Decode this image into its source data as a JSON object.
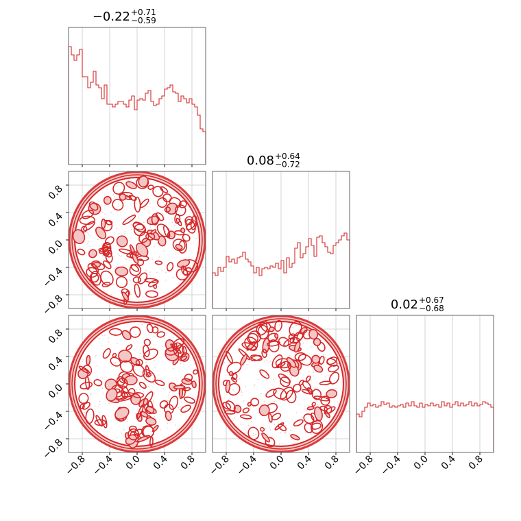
{
  "figure": {
    "type": "corner-plot"
  },
  "chart_data": {
    "type": "corner",
    "color": "#d62728",
    "grid": true,
    "shared_axis_range": [
      -1,
      1
    ],
    "tick_labels": [
      "−0.8",
      "−0.4",
      "0.0",
      "0.4",
      "0.8"
    ],
    "tick_values": [
      -0.8,
      -0.4,
      0.0,
      0.4,
      0.8
    ],
    "parameters": [
      {
        "title": {
          "median": "−0.22",
          "plus": "+0.71",
          "minus": "−0.59"
        },
        "histogram": {
          "bin_edges_range": [
            -1,
            1
          ],
          "counts": [
            0.86,
            0.8,
            0.76,
            0.8,
            0.84,
            0.64,
            0.64,
            0.56,
            0.6,
            0.68,
            0.58,
            0.56,
            0.48,
            0.58,
            0.44,
            0.44,
            0.42,
            0.44,
            0.46,
            0.46,
            0.44,
            0.42,
            0.47,
            0.5,
            0.4,
            0.47,
            0.48,
            0.47,
            0.52,
            0.54,
            0.46,
            0.43,
            0.44,
            0.48,
            0.5,
            0.55,
            0.56,
            0.58,
            0.53,
            0.52,
            0.46,
            0.5,
            0.48,
            0.45,
            0.48,
            0.44,
            0.42,
            0.36,
            0.26,
            0.24
          ]
        }
      },
      {
        "title": {
          "median": "0.08",
          "plus": "+0.64",
          "minus": "−0.72"
        },
        "histogram": {
          "bin_edges_range": [
            -1,
            1
          ],
          "counts": [
            0.26,
            0.24,
            0.3,
            0.27,
            0.3,
            0.38,
            0.34,
            0.36,
            0.33,
            0.37,
            0.38,
            0.41,
            0.36,
            0.34,
            0.31,
            0.26,
            0.3,
            0.24,
            0.29,
            0.3,
            0.29,
            0.31,
            0.3,
            0.33,
            0.29,
            0.35,
            0.26,
            0.37,
            0.3,
            0.33,
            0.44,
            0.48,
            0.37,
            0.4,
            0.45,
            0.51,
            0.46,
            0.38,
            0.52,
            0.53,
            0.48,
            0.45,
            0.41,
            0.4,
            0.46,
            0.48,
            0.5,
            0.53,
            0.55,
            0.5
          ]
        }
      },
      {
        "title": {
          "median": "0.02",
          "plus": "+0.67",
          "minus": "−0.68"
        },
        "histogram": {
          "bin_edges_range": [
            -1,
            1
          ],
          "counts": [
            0.28,
            0.26,
            0.3,
            0.33,
            0.36,
            0.34,
            0.35,
            0.33,
            0.34,
            0.37,
            0.35,
            0.36,
            0.33,
            0.34,
            0.33,
            0.34,
            0.35,
            0.33,
            0.36,
            0.34,
            0.37,
            0.34,
            0.33,
            0.36,
            0.33,
            0.35,
            0.34,
            0.36,
            0.34,
            0.35,
            0.33,
            0.37,
            0.34,
            0.36,
            0.33,
            0.35,
            0.37,
            0.34,
            0.36,
            0.34,
            0.35,
            0.37,
            0.34,
            0.36,
            0.34,
            0.35,
            0.37,
            0.36,
            0.35,
            0.33
          ]
        }
      }
    ],
    "contour_panels": [
      {
        "x_param": 0,
        "y_param": 1,
        "support": "unit-disk"
      },
      {
        "x_param": 0,
        "y_param": 2,
        "support": "unit-disk"
      },
      {
        "x_param": 1,
        "y_param": 2,
        "support": "unit-disk"
      }
    ]
  }
}
